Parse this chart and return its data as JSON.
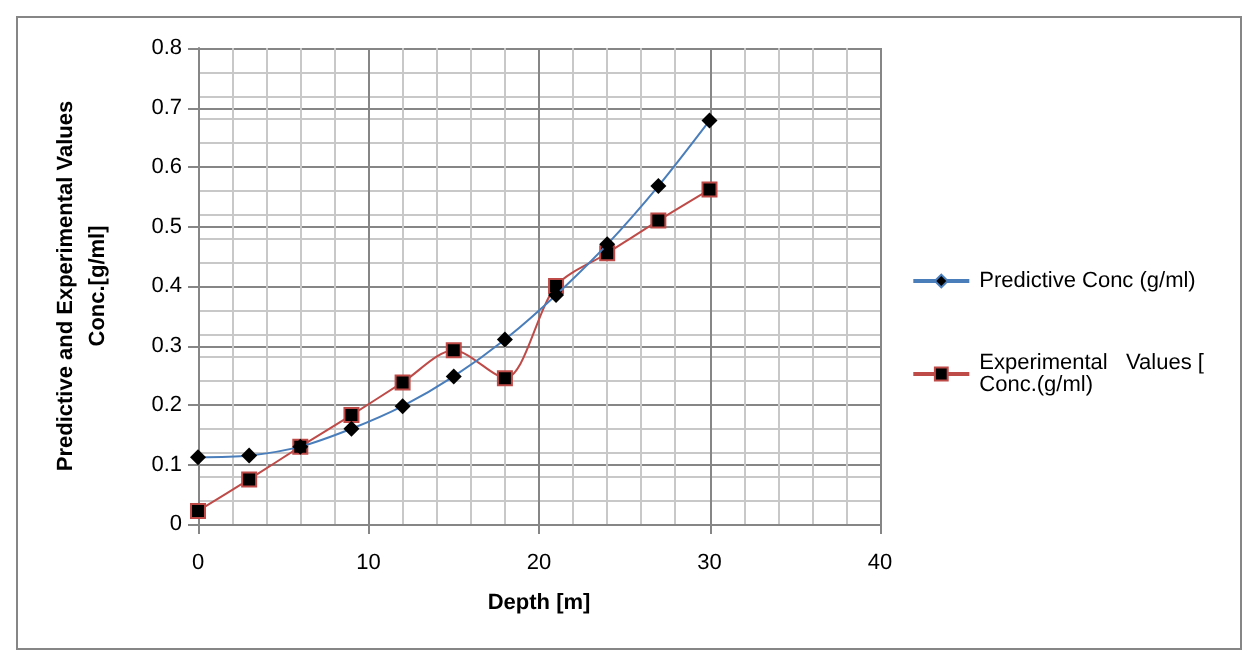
{
  "chart_data": {
    "type": "line",
    "xlabel": "Depth [m]",
    "ylabel": "Predictive and Experimental Values\nConc.[g/ml]",
    "x": [
      0,
      3,
      6,
      9,
      12,
      15,
      18,
      21,
      24,
      27,
      30
    ],
    "series": [
      {
        "name": "Predictive Conc (g/ml)",
        "color": "#4a7ebb",
        "marker": "diamond",
        "values": [
          0.112,
          0.115,
          0.13,
          0.16,
          0.198,
          0.248,
          0.31,
          0.385,
          0.47,
          0.568,
          0.678
        ]
      },
      {
        "name": "Experimental   Values [ Conc.(g/ml)",
        "color": "#be4b48",
        "marker": "square",
        "values": [
          0.022,
          0.075,
          0.13,
          0.183,
          0.238,
          0.292,
          0.245,
          0.4,
          0.455,
          0.51,
          0.562
        ]
      }
    ],
    "xlim": [
      0,
      40
    ],
    "xticks": [
      0,
      10,
      20,
      30,
      40
    ],
    "ylim": [
      0,
      0.8
    ],
    "yticks": [
      0,
      0.1,
      0.2,
      0.3,
      0.4,
      0.5,
      0.6,
      0.7,
      0.8
    ],
    "grid": true,
    "legend": "right",
    "line_style": "solid"
  }
}
